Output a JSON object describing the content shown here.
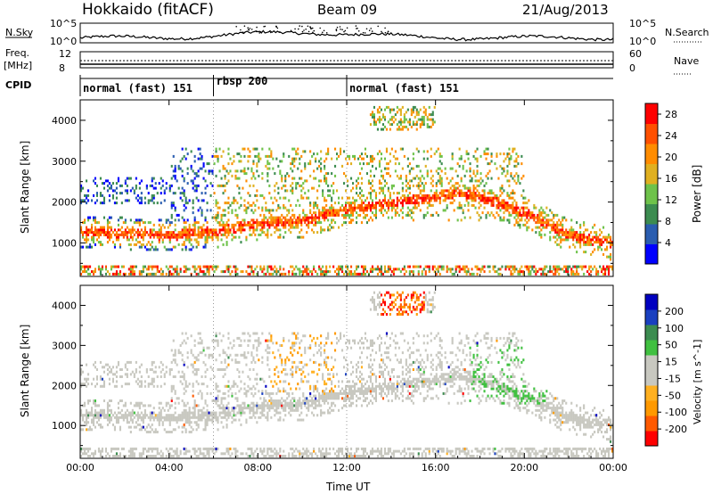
{
  "header": {
    "station": "Hokkaido (fitACF)",
    "beam": "Beam 09",
    "date": "21/Aug/2013"
  },
  "top_strip": {
    "left_label_1": "N.Sky",
    "left_ticks_1": [
      "10^5",
      "10^0"
    ],
    "right_ticks_1": [
      "10^5",
      "10^0"
    ],
    "right_label_1": "N.Search",
    "left_label_2a": "Freq.",
    "left_label_2b": "[MHz]",
    "left_ticks_2": [
      "12",
      "8"
    ],
    "right_ticks_2": [
      "60",
      "0"
    ],
    "right_label_2": "Nave",
    "cpid_label": "CPID",
    "cpid_segments": [
      {
        "label": "normal (fast) 151",
        "start_h": 0
      },
      {
        "label": "rbsp 200",
        "start_h": 6
      },
      {
        "label": "normal (fast) 151",
        "start_h": 12
      }
    ]
  },
  "colors": {
    "power": [
      "#0000ff",
      "#2a5db0",
      "#3c8c50",
      "#6ec24a",
      "#e0b020",
      "#ff8c00",
      "#ff5000",
      "#ff0000"
    ],
    "velocity": [
      "#ff0000",
      "#ff5a00",
      "#ff9900",
      "#ffb020",
      "#c8c8c0",
      "#c8c8c0",
      "#40c040",
      "#3c8c50",
      "#1a40c0",
      "#0000c0"
    ],
    "grey": "#c8c8c0"
  },
  "chart_data": [
    {
      "type": "heatmap",
      "title": "",
      "xlabel": "",
      "ylabel": "Slant Range [km]",
      "xlim": [
        0,
        24
      ],
      "ylim": [
        180,
        4500
      ],
      "x_ticks": [
        "00:00",
        "04:00",
        "08:00",
        "12:00",
        "16:00",
        "20:00",
        "00:00"
      ],
      "y_ticks": [
        "1000",
        "2000",
        "3000",
        "4000"
      ],
      "colorbar": {
        "label": "Power [dB]",
        "ticks": [
          "4",
          "8",
          "12",
          "16",
          "20",
          "24",
          "28"
        ],
        "range": [
          0,
          30
        ]
      },
      "features": [
        {
          "name": "main band",
          "x": [
            0,
            2,
            4,
            6,
            8,
            10,
            12,
            14,
            16,
            17,
            18,
            20,
            22,
            24
          ],
          "y": [
            1250,
            1200,
            1150,
            1250,
            1450,
            1500,
            1800,
            1950,
            2100,
            2200,
            2100,
            1700,
            1150,
            950
          ]
        }
      ]
    },
    {
      "type": "heatmap",
      "title": "",
      "xlabel": "Time UT",
      "ylabel": "Slant Range [km]",
      "xlim": [
        0,
        24
      ],
      "ylim": [
        180,
        4500
      ],
      "x_ticks": [
        "00:00",
        "04:00",
        "08:00",
        "12:00",
        "16:00",
        "20:00",
        "00:00"
      ],
      "y_ticks": [
        "1000",
        "2000",
        "3000",
        "4000"
      ],
      "colorbar": {
        "label": "Velocity [m s^-1]",
        "ticks": [
          "-200",
          "-100",
          "-50",
          "-15",
          "15",
          "50",
          "100",
          "200"
        ]
      }
    }
  ]
}
